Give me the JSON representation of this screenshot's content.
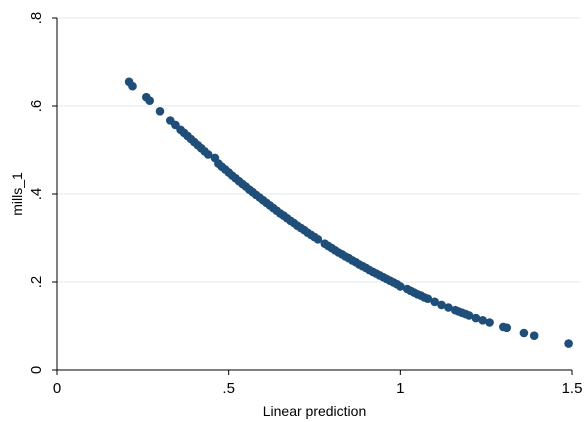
{
  "chart_data": {
    "type": "scatter",
    "xlabel": "Linear prediction",
    "ylabel": "mills_1",
    "xlim": [
      0,
      1.5
    ],
    "ylim": [
      0,
      0.8
    ],
    "xticks": [
      "0",
      ".5",
      "1",
      "1.5"
    ],
    "xtick_values": [
      0,
      0.5,
      1,
      1.5
    ],
    "yticks": [
      "0",
      ".2",
      ".4",
      ".6",
      ".8"
    ],
    "ytick_values": [
      0,
      0.2,
      0.4,
      0.6,
      0.8
    ],
    "grid": "horizontal",
    "colors": {
      "marker": "#1f4e79",
      "grid": "#dfe8ea",
      "axis": "#000000"
    },
    "points": [
      {
        "x": 0.21,
        "y": 0.655
      },
      {
        "x": 0.22,
        "y": 0.645
      },
      {
        "x": 0.26,
        "y": 0.62
      },
      {
        "x": 0.27,
        "y": 0.612
      },
      {
        "x": 0.3,
        "y": 0.588
      },
      {
        "x": 0.33,
        "y": 0.567
      },
      {
        "x": 0.345,
        "y": 0.557
      },
      {
        "x": 0.36,
        "y": 0.546
      },
      {
        "x": 0.37,
        "y": 0.539
      },
      {
        "x": 0.38,
        "y": 0.532
      },
      {
        "x": 0.39,
        "y": 0.525
      },
      {
        "x": 0.4,
        "y": 0.518
      },
      {
        "x": 0.41,
        "y": 0.511
      },
      {
        "x": 0.42,
        "y": 0.504
      },
      {
        "x": 0.43,
        "y": 0.497
      },
      {
        "x": 0.44,
        "y": 0.49
      },
      {
        "x": 0.46,
        "y": 0.482
      },
      {
        "x": 0.47,
        "y": 0.469
      },
      {
        "x": 0.48,
        "y": 0.462
      },
      {
        "x": 0.49,
        "y": 0.456
      },
      {
        "x": 0.5,
        "y": 0.449
      },
      {
        "x": 0.51,
        "y": 0.442
      },
      {
        "x": 0.52,
        "y": 0.436
      },
      {
        "x": 0.53,
        "y": 0.429
      },
      {
        "x": 0.54,
        "y": 0.423
      },
      {
        "x": 0.55,
        "y": 0.417
      },
      {
        "x": 0.56,
        "y": 0.41
      },
      {
        "x": 0.57,
        "y": 0.404
      },
      {
        "x": 0.58,
        "y": 0.398
      },
      {
        "x": 0.59,
        "y": 0.392
      },
      {
        "x": 0.6,
        "y": 0.386
      },
      {
        "x": 0.61,
        "y": 0.38
      },
      {
        "x": 0.62,
        "y": 0.374
      },
      {
        "x": 0.63,
        "y": 0.368
      },
      {
        "x": 0.64,
        "y": 0.362
      },
      {
        "x": 0.65,
        "y": 0.356
      },
      {
        "x": 0.66,
        "y": 0.351
      },
      {
        "x": 0.67,
        "y": 0.345
      },
      {
        "x": 0.68,
        "y": 0.339
      },
      {
        "x": 0.69,
        "y": 0.334
      },
      {
        "x": 0.7,
        "y": 0.328
      },
      {
        "x": 0.71,
        "y": 0.323
      },
      {
        "x": 0.72,
        "y": 0.318
      },
      {
        "x": 0.73,
        "y": 0.312
      },
      {
        "x": 0.74,
        "y": 0.307
      },
      {
        "x": 0.75,
        "y": 0.302
      },
      {
        "x": 0.76,
        "y": 0.297
      },
      {
        "x": 0.78,
        "y": 0.287
      },
      {
        "x": 0.79,
        "y": 0.282
      },
      {
        "x": 0.8,
        "y": 0.277
      },
      {
        "x": 0.81,
        "y": 0.272
      },
      {
        "x": 0.82,
        "y": 0.267
      },
      {
        "x": 0.83,
        "y": 0.263
      },
      {
        "x": 0.84,
        "y": 0.258
      },
      {
        "x": 0.85,
        "y": 0.254
      },
      {
        "x": 0.86,
        "y": 0.249
      },
      {
        "x": 0.87,
        "y": 0.245
      },
      {
        "x": 0.88,
        "y": 0.24
      },
      {
        "x": 0.89,
        "y": 0.236
      },
      {
        "x": 0.9,
        "y": 0.232
      },
      {
        "x": 0.91,
        "y": 0.227
      },
      {
        "x": 0.92,
        "y": 0.223
      },
      {
        "x": 0.93,
        "y": 0.219
      },
      {
        "x": 0.94,
        "y": 0.215
      },
      {
        "x": 0.95,
        "y": 0.211
      },
      {
        "x": 0.96,
        "y": 0.207
      },
      {
        "x": 0.97,
        "y": 0.203
      },
      {
        "x": 0.98,
        "y": 0.199
      },
      {
        "x": 0.99,
        "y": 0.195
      },
      {
        "x": 1.0,
        "y": 0.19
      },
      {
        "x": 1.02,
        "y": 0.184
      },
      {
        "x": 1.03,
        "y": 0.18
      },
      {
        "x": 1.04,
        "y": 0.176
      },
      {
        "x": 1.05,
        "y": 0.172
      },
      {
        "x": 1.06,
        "y": 0.169
      },
      {
        "x": 1.07,
        "y": 0.165
      },
      {
        "x": 1.08,
        "y": 0.162
      },
      {
        "x": 1.1,
        "y": 0.155
      },
      {
        "x": 1.12,
        "y": 0.148
      },
      {
        "x": 1.14,
        "y": 0.142
      },
      {
        "x": 1.16,
        "y": 0.136
      },
      {
        "x": 1.17,
        "y": 0.133
      },
      {
        "x": 1.18,
        "y": 0.13
      },
      {
        "x": 1.19,
        "y": 0.127
      },
      {
        "x": 1.2,
        "y": 0.124
      },
      {
        "x": 1.22,
        "y": 0.118
      },
      {
        "x": 1.24,
        "y": 0.113
      },
      {
        "x": 1.26,
        "y": 0.108
      },
      {
        "x": 1.3,
        "y": 0.098
      },
      {
        "x": 1.31,
        "y": 0.096
      },
      {
        "x": 1.36,
        "y": 0.084
      },
      {
        "x": 1.39,
        "y": 0.078
      },
      {
        "x": 1.49,
        "y": 0.06
      }
    ]
  }
}
